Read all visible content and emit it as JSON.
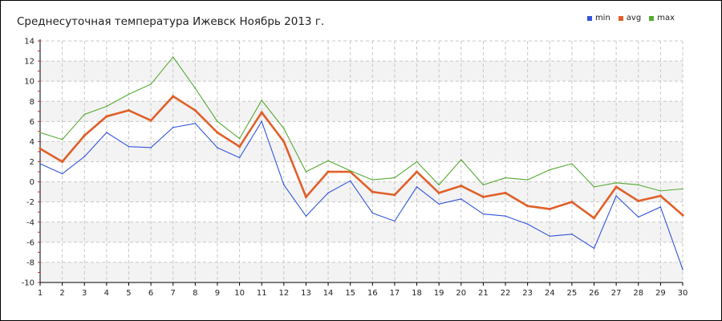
{
  "chart_data": {
    "type": "line",
    "title": "Среднесуточная температура Ижевск  Ноябрь 2013 г.",
    "xlabel": "",
    "ylabel": "",
    "x": [
      1,
      2,
      3,
      4,
      5,
      6,
      7,
      8,
      9,
      10,
      11,
      12,
      13,
      14,
      15,
      16,
      17,
      18,
      19,
      20,
      21,
      22,
      23,
      24,
      25,
      26,
      27,
      28,
      29,
      30
    ],
    "xlim": [
      1,
      30
    ],
    "ylim": [
      -10,
      14
    ],
    "y_ticks": [
      14,
      12,
      10,
      8,
      6,
      4,
      2,
      0,
      -2,
      -4,
      -6,
      -8,
      -10
    ],
    "grid": true,
    "legend": "top-right",
    "series": [
      {
        "name": "min",
        "color": "#3355dd",
        "values": [
          1.8,
          0.8,
          2.5,
          4.9,
          3.5,
          3.4,
          5.4,
          5.8,
          3.4,
          2.4,
          6.0,
          -0.3,
          -3.4,
          -1.1,
          0.1,
          -3.1,
          -3.9,
          -0.5,
          -2.2,
          -1.7,
          -3.2,
          -3.4,
          -4.2,
          -5.4,
          -5.2,
          -6.6,
          -1.4,
          -3.5,
          -2.5,
          -8.7
        ]
      },
      {
        "name": "avg",
        "color": "#e0602a",
        "values": [
          3.3,
          2.0,
          4.6,
          6.5,
          7.1,
          6.1,
          8.5,
          7.1,
          4.9,
          3.5,
          6.9,
          4.0,
          -1.5,
          1.0,
          1.0,
          -1.0,
          -1.3,
          1.0,
          -1.1,
          -0.4,
          -1.5,
          -1.1,
          -2.4,
          -2.7,
          -2.0,
          -3.6,
          -0.5,
          -1.9,
          -1.4,
          -3.3
        ]
      },
      {
        "name": "max",
        "color": "#55aa33",
        "values": [
          4.9,
          4.2,
          6.7,
          7.5,
          8.7,
          9.7,
          12.4,
          9.3,
          6.0,
          4.3,
          8.1,
          5.3,
          1.0,
          2.1,
          1.1,
          0.2,
          0.4,
          2.0,
          -0.3,
          2.2,
          -0.3,
          0.4,
          0.2,
          1.2,
          1.8,
          -0.5,
          -0.1,
          -0.3,
          -0.9,
          -0.7
        ]
      }
    ]
  }
}
